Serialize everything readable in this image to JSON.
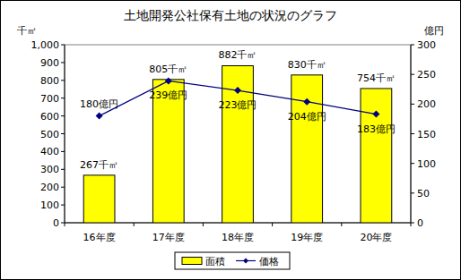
{
  "chart_data": {
    "type": "bar",
    "title": "土地開発公社保有土地の状況のグラフ",
    "ylabel": "千㎡",
    "y2label": "億円",
    "categories": [
      "16年度",
      "17年度",
      "18年度",
      "19年度",
      "20年度"
    ],
    "series": [
      {
        "name": "面積",
        "type": "bar",
        "color": "#ffff00",
        "axis": "y",
        "values": [
          267,
          805,
          882,
          830,
          754
        ],
        "value_labels": [
          "267千㎡",
          "805千㎡",
          "882千㎡",
          "830千㎡",
          "754千㎡"
        ]
      },
      {
        "name": "価格",
        "type": "line",
        "color": "#000080",
        "axis": "y2",
        "marker": "diamond",
        "line_style": "solid",
        "values": [
          180,
          239,
          223,
          204,
          183
        ],
        "value_labels": [
          "180億円",
          "239億円",
          "223億円",
          "204億円",
          "183億円"
        ]
      }
    ],
    "ylim": [
      0,
      1000
    ],
    "yticks": [
      0,
      100,
      200,
      300,
      400,
      500,
      600,
      700,
      800,
      900,
      {
        "value": 1000,
        "label": "1,000"
      }
    ],
    "y2lim": [
      0,
      300
    ],
    "y2ticks": [
      0,
      50,
      100,
      150,
      200,
      250,
      300
    ],
    "grid": false,
    "legend": "bottom",
    "data_labels": true
  }
}
